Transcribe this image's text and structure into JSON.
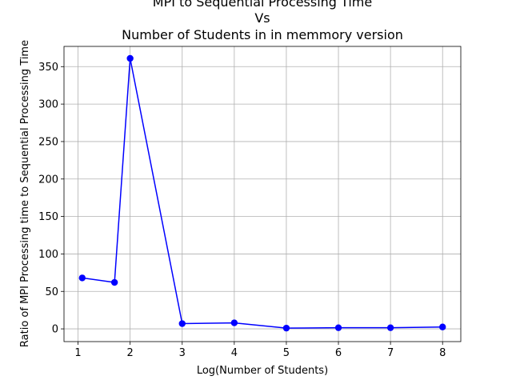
{
  "chart_data": {
    "type": "line",
    "title_lines": [
      "MPI to Sequential Processing Time",
      "Vs",
      "Number of Students in in memmory version"
    ],
    "xlabel": "Log(Number of Students)",
    "ylabel": "Ratio of MPI Processing time to Sequential Processing Time",
    "xlim": [
      0.73,
      8.35
    ],
    "ylim": [
      -17,
      377
    ],
    "xticks": [
      1,
      2,
      3,
      4,
      5,
      6,
      7,
      8
    ],
    "yticks": [
      0,
      50,
      100,
      150,
      200,
      250,
      300,
      350
    ],
    "grid": true,
    "series": [
      {
        "color": "#0000ff",
        "marker": "circle",
        "x": [
          1.08,
          1.7,
          2.0,
          3.0,
          4.0,
          5.0,
          6.0,
          7.0,
          8.0
        ],
        "y": [
          68,
          62,
          361,
          7,
          8,
          1,
          1.5,
          1.5,
          2.5
        ]
      }
    ]
  }
}
